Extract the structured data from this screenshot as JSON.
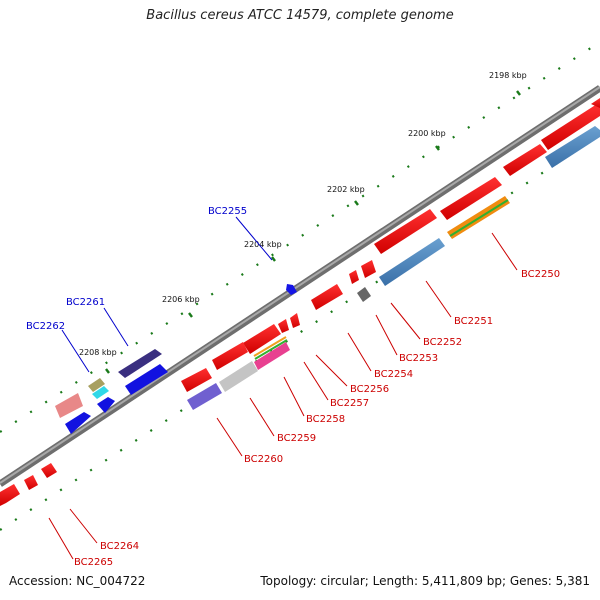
{
  "title": "Bacillus cereus ATCC 14579, complete genome",
  "footer": {
    "accession": "Accession: NC_004722",
    "summary": "Topology: circular; Length: 5,411,809 bp; Genes: 5,381"
  },
  "ticks": [
    "2198 kbp",
    "2200 kbp",
    "2202 kbp",
    "2204 kbp",
    "2206 kbp",
    "2208 kbp"
  ],
  "colors": {
    "forward_label": "#0000cc",
    "reverse_label": "#cc0000",
    "backbone": "#808080",
    "tick_mark": "#1a7a1a"
  },
  "gene_labels": [
    {
      "text": "BC2255",
      "strand": "forward"
    },
    {
      "text": "BC2261",
      "strand": "forward"
    },
    {
      "text": "BC2262",
      "strand": "forward"
    },
    {
      "text": "BC2250",
      "strand": "reverse"
    },
    {
      "text": "BC2251",
      "strand": "reverse"
    },
    {
      "text": "BC2252",
      "strand": "reverse"
    },
    {
      "text": "BC2253",
      "strand": "reverse"
    },
    {
      "text": "BC2254",
      "strand": "reverse"
    },
    {
      "text": "BC2256",
      "strand": "reverse"
    },
    {
      "text": "BC2257",
      "strand": "reverse"
    },
    {
      "text": "BC2258",
      "strand": "reverse"
    },
    {
      "text": "BC2259",
      "strand": "reverse"
    },
    {
      "text": "BC2260",
      "strand": "reverse"
    },
    {
      "text": "BC2264",
      "strand": "reverse"
    },
    {
      "text": "BC2265",
      "strand": "reverse"
    }
  ]
}
